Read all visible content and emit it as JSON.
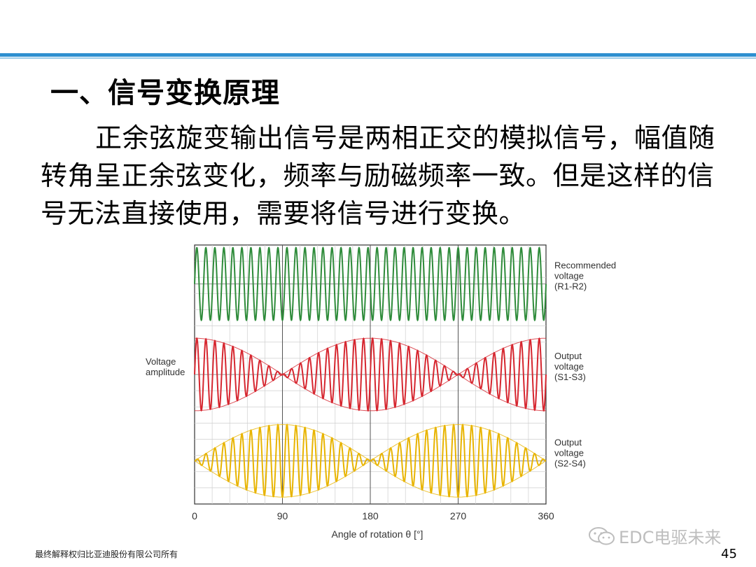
{
  "slide": {
    "heading": "一、信号变换原理",
    "paragraph": "正余弦旋变输出信号是两相正交的模拟信号，幅值随转角呈正余弦变化，频率与励磁频率一致。但是这样的信号无法直接使用，需要将信号进行变换。",
    "footer_text": "最终解释权归比亚迪股份有限公司所有",
    "page_number": "45",
    "watermark_text": "EDC电驱未来",
    "watermark_icon": "wechat-icon",
    "rule_color": "#2e8fd0"
  },
  "chart_data": {
    "type": "line",
    "title": "",
    "xlabel": "Angle of rotation θ [°]",
    "ylabel": "Voltage amplitude",
    "xlim": [
      0,
      360
    ],
    "x_ticks": [
      "0",
      "90",
      "180",
      "270",
      "360"
    ],
    "grid": true,
    "carrier_cycles": 39,
    "series": [
      {
        "label_lines": [
          "Recommended",
          "voltage",
          "(R1-R2)"
        ],
        "color": "#2e8b3a",
        "envelope": "constant",
        "amplitude": 1
      },
      {
        "label_lines": [
          "Output",
          "voltage",
          "(S1-S3)"
        ],
        "color": "#d6262f",
        "envelope": "cos",
        "amplitude": 1
      },
      {
        "label_lines": [
          "Output",
          "voltage",
          "(S2-S4)"
        ],
        "color": "#e8b400",
        "envelope": "sin",
        "amplitude": 1
      }
    ]
  }
}
